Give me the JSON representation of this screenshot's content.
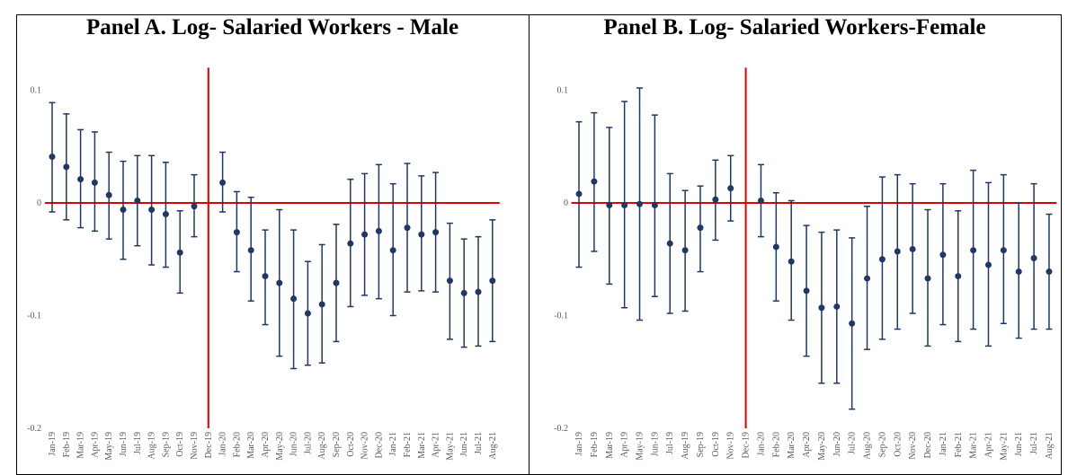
{
  "chart_data": [
    {
      "type": "errorbar",
      "title": "Panel A. Log- Salaried Workers - Male",
      "categories": [
        "Jan-19",
        "Feb-19",
        "Mar-19",
        "Apr-19",
        "May-19",
        "Jun-19",
        "Jul-19",
        "Aug-19",
        "Sep-19",
        "Oct-19",
        "Nov-19",
        "Dec-19",
        "Jan-20",
        "Feb-20",
        "Mar-20",
        "Apr-20",
        "May-20",
        "Jun-20",
        "Jul-20",
        "Aug-20",
        "Sep-20",
        "Oct-20",
        "Nov-20",
        "Dec-20",
        "Jan-21",
        "Feb-21",
        "Mar-21",
        "Apr-21",
        "May-21",
        "Jun-21",
        "Jul-21",
        "Aug-21"
      ],
      "values": [
        0.041,
        0.032,
        0.021,
        0.018,
        0.007,
        -0.006,
        0.002,
        -0.006,
        -0.01,
        -0.044,
        -0.003,
        null,
        0.018,
        -0.026,
        -0.042,
        -0.065,
        -0.071,
        -0.085,
        -0.098,
        -0.09,
        -0.071,
        -0.036,
        -0.028,
        -0.025,
        -0.042,
        -0.022,
        -0.028,
        -0.026,
        -0.069,
        -0.08,
        -0.079,
        -0.069
      ],
      "upper": [
        0.089,
        0.079,
        0.065,
        0.063,
        0.045,
        0.037,
        0.042,
        0.042,
        0.036,
        -0.007,
        0.025,
        null,
        0.045,
        0.01,
        0.005,
        -0.024,
        -0.006,
        -0.024,
        -0.052,
        -0.037,
        -0.019,
        0.021,
        0.026,
        0.034,
        0.017,
        0.035,
        0.024,
        0.027,
        -0.018,
        -0.032,
        -0.03,
        -0.015
      ],
      "lower": [
        -0.008,
        -0.015,
        -0.022,
        -0.025,
        -0.032,
        -0.05,
        -0.038,
        -0.055,
        -0.057,
        -0.08,
        -0.03,
        null,
        -0.008,
        -0.061,
        -0.087,
        -0.108,
        -0.136,
        -0.147,
        -0.144,
        -0.142,
        -0.123,
        -0.092,
        -0.082,
        -0.085,
        -0.1,
        -0.079,
        -0.078,
        -0.079,
        -0.121,
        -0.128,
        -0.127,
        -0.123
      ],
      "color": "#1f3864",
      "ref_color": "#e00000",
      "vline": "Dec-19",
      "hline": 0,
      "ylim": [
        -0.2,
        0.12
      ],
      "yticks": [
        -0.2,
        -0.1,
        0,
        0.1
      ]
    },
    {
      "type": "errorbar",
      "title": "Panel B. Log- Salaried Workers-Female",
      "categories": [
        "Jan-19",
        "Feb-19",
        "Mar-19",
        "Apr-19",
        "May-19",
        "Jun-19",
        "Jul-19",
        "Aug-19",
        "Sep-19",
        "Oct-19",
        "Nov-19",
        "Dec-19",
        "Jan-20",
        "Feb-20",
        "Mar-20",
        "Apr-20",
        "May-20",
        "Jun-20",
        "Jul-20",
        "Aug-20",
        "Sep-20",
        "Oct-20",
        "Nov-20",
        "Dec-20",
        "Jan-21",
        "Feb-21",
        "Mar-21",
        "Apr-21",
        "May-21",
        "Jun-21",
        "Jul-21",
        "Aug-21"
      ],
      "values": [
        0.008,
        0.019,
        -0.002,
        -0.002,
        -0.001,
        -0.002,
        -0.036,
        -0.042,
        -0.022,
        0.003,
        0.013,
        null,
        0.002,
        -0.039,
        -0.052,
        -0.078,
        -0.093,
        -0.092,
        -0.107,
        -0.067,
        -0.05,
        -0.043,
        -0.041,
        -0.067,
        -0.046,
        -0.065,
        -0.042,
        -0.055,
        -0.042,
        -0.061,
        -0.049,
        -0.061
      ],
      "upper": [
        0.072,
        0.08,
        0.067,
        0.09,
        0.102,
        0.078,
        0.026,
        0.011,
        0.015,
        0.038,
        0.042,
        null,
        0.034,
        0.009,
        0.002,
        -0.02,
        -0.026,
        -0.024,
        -0.031,
        -0.003,
        0.023,
        0.025,
        0.017,
        -0.006,
        0.017,
        -0.007,
        0.029,
        0.018,
        0.025,
        0.0,
        0.017,
        -0.01
      ],
      "lower": [
        -0.057,
        -0.043,
        -0.072,
        -0.093,
        -0.104,
        -0.083,
        -0.098,
        -0.096,
        -0.061,
        -0.033,
        -0.016,
        null,
        -0.03,
        -0.087,
        -0.104,
        -0.136,
        -0.16,
        -0.16,
        -0.183,
        -0.13,
        -0.121,
        -0.112,
        -0.098,
        -0.127,
        -0.108,
        -0.123,
        -0.112,
        -0.127,
        -0.107,
        -0.12,
        -0.112,
        -0.112
      ],
      "color": "#1f3864",
      "ref_color": "#e00000",
      "vline": "Dec-19",
      "hline": 0,
      "ylim": [
        -0.2,
        0.12
      ],
      "yticks": [
        -0.2,
        -0.1,
        0,
        0.1
      ]
    }
  ]
}
